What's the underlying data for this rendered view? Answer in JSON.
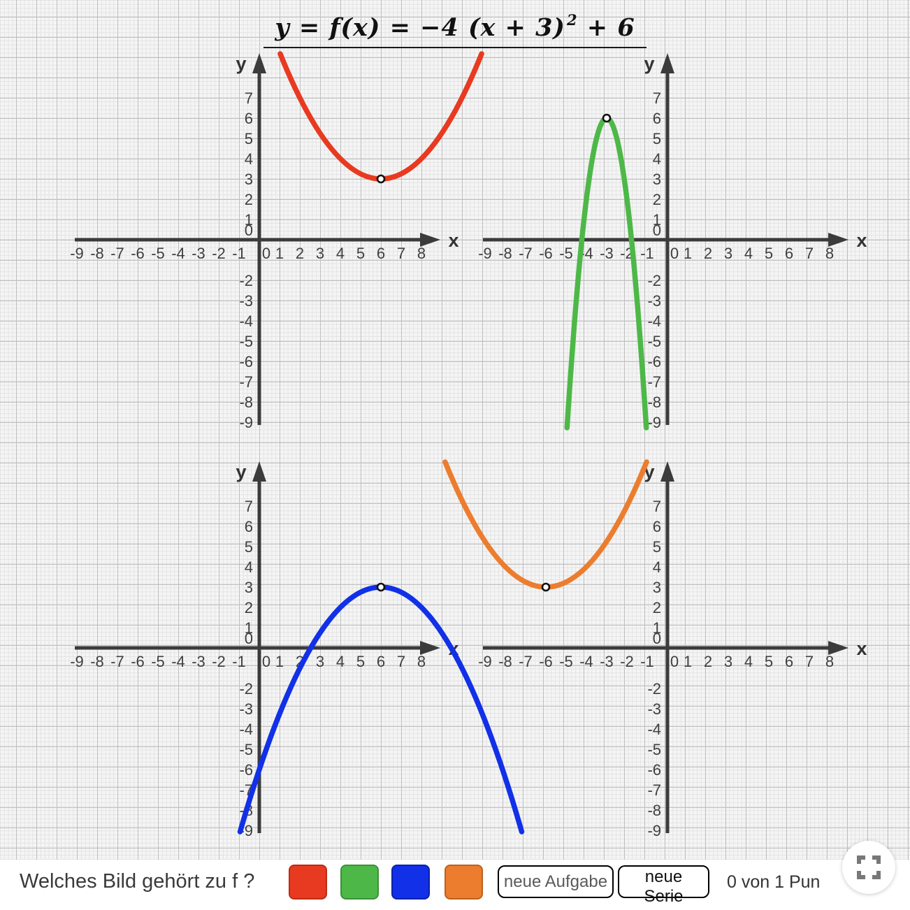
{
  "title": {
    "before": "y = f(x) = −4 (x + 3)",
    "sup": "2",
    "after": " + 6"
  },
  "colors": {
    "red": "#e83a20",
    "red_border": "#b92d14",
    "green": "#4db848",
    "green_border": "#3c9038",
    "blue": "#1130e8",
    "blue_border": "#0b21a8",
    "orange": "#ec7d2e",
    "orange_border": "#bb611e",
    "axis": "#3b3b3b",
    "tick_label": "#3f3f3f",
    "axis_letter": "#333333"
  },
  "axes": {
    "x_label": "x",
    "y_label": "y",
    "x_ticks": [
      "-9",
      "-8",
      "-7",
      "-6",
      "-5",
      "-4",
      "-3",
      "-2",
      "-1",
      "0",
      "1",
      "2",
      "3",
      "4",
      "5",
      "6",
      "7",
      "8"
    ],
    "y_ticks": [
      "7",
      "6",
      "5",
      "4",
      "3",
      "2",
      "1",
      "0",
      "-2",
      "-3",
      "-4",
      "-5",
      "-6",
      "-7",
      "-8",
      "-9"
    ],
    "x_range": [
      -9,
      8
    ],
    "y_range": [
      -9,
      7
    ],
    "grid": true
  },
  "chart_data": [
    {
      "panel": "top-left",
      "type": "line",
      "curve": "parabola",
      "color_name": "red",
      "vertex": [
        6,
        3
      ],
      "opens": "up",
      "leading_coefficient": 0.25,
      "approx_equation": "y = 0.25 (x − 6)² + 3"
    },
    {
      "panel": "top-right",
      "type": "line",
      "curve": "parabola",
      "color_name": "green",
      "vertex": [
        -3,
        6
      ],
      "opens": "down",
      "leading_coefficient": -4,
      "approx_equation": "y = −4 (x + 3)² + 6"
    },
    {
      "panel": "bottom-left",
      "type": "line",
      "curve": "parabola",
      "color_name": "blue",
      "vertex": [
        6,
        3
      ],
      "opens": "down",
      "leading_coefficient": -0.25,
      "approx_equation": "y = −0.25 (x − 6)² + 3"
    },
    {
      "panel": "bottom-right",
      "type": "line",
      "curve": "parabola",
      "color_name": "orange",
      "vertex": [
        -6,
        3
      ],
      "opens": "up",
      "leading_coefficient": 0.25,
      "approx_equation": "y = 0.25 (x + 6)² + 3"
    }
  ],
  "footer": {
    "question": "Welches Bild gehört zu f ?",
    "swatches": [
      "red",
      "green",
      "blue",
      "orange"
    ],
    "buttons": {
      "new_task": "neue Aufgabe",
      "new_series": "neue Serie"
    },
    "score": "0 von 1 Pun"
  }
}
